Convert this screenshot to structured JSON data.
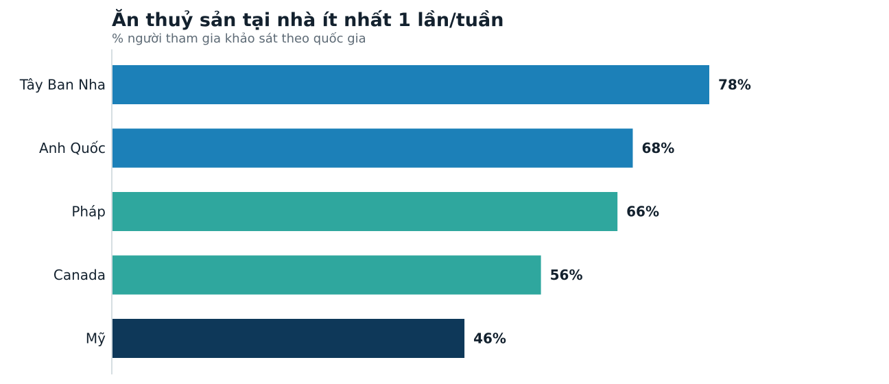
{
  "chart_data": {
    "type": "bar",
    "orientation": "horizontal",
    "title": "Ăn thuỷ sản tại nhà ít nhất 1 lần/tuần",
    "subtitle": "% người tham gia khảo sát theo quốc gia",
    "categories": [
      "Tây Ban Nha",
      "Anh Quốc",
      "Pháp",
      "Canada",
      "Mỹ"
    ],
    "values": [
      78,
      68,
      66,
      56,
      46
    ],
    "value_labels": [
      "78%",
      "68%",
      "66%",
      "56%",
      "46%"
    ],
    "colors": [
      "#1c80b8",
      "#1c80b8",
      "#2fa79e",
      "#2fa79e",
      "#0e3859"
    ],
    "unit": "%",
    "xlim": [
      0,
      100
    ],
    "grid": false,
    "legend": "none"
  }
}
